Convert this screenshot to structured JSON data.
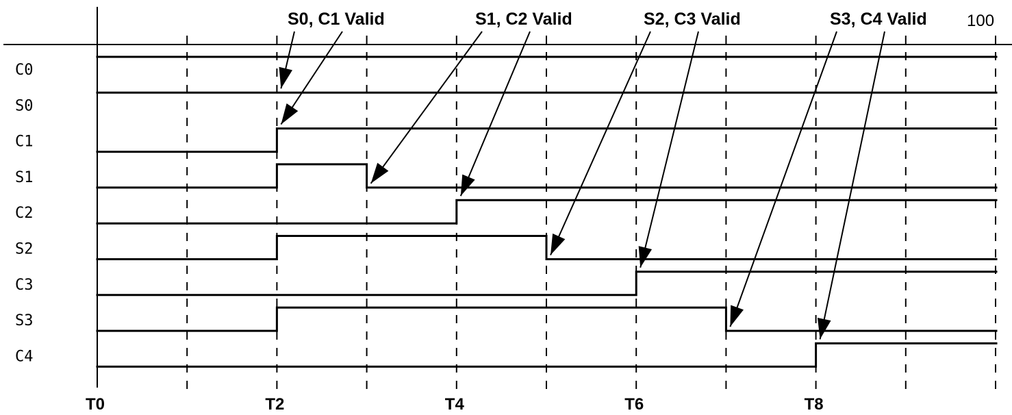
{
  "signals": [
    {
      "name": "C0",
      "transitions": [],
      "initial": 1
    },
    {
      "name": "S0",
      "transitions": [],
      "initial": 1
    },
    {
      "name": "C1",
      "transitions": [
        2
      ],
      "initial": 0
    },
    {
      "name": "S1",
      "transitions": [
        2,
        3
      ],
      "initial": 0
    },
    {
      "name": "C2",
      "transitions": [
        4
      ],
      "initial": 0
    },
    {
      "name": "S2",
      "transitions": [
        2,
        5
      ],
      "initial": 0
    },
    {
      "name": "C3",
      "transitions": [
        6
      ],
      "initial": 0
    },
    {
      "name": "S3",
      "transitions": [
        2,
        7
      ],
      "initial": 0
    },
    {
      "name": "C4",
      "transitions": [
        8
      ],
      "initial": 0
    }
  ],
  "annotations": [
    {
      "text": "S0, C1 Valid",
      "targets": [
        {
          "signal": "S0",
          "t": 2
        },
        {
          "signal": "C1",
          "t": 2
        }
      ]
    },
    {
      "text": "S1, C2 Valid",
      "targets": [
        {
          "signal": "S1",
          "t": 3
        },
        {
          "signal": "C2",
          "t": 4
        }
      ]
    },
    {
      "text": "S2, C3 Valid",
      "targets": [
        {
          "signal": "S2",
          "t": 5
        },
        {
          "signal": "C3",
          "t": 6
        }
      ]
    },
    {
      "text": "S3, C4 Valid",
      "targets": [
        {
          "signal": "S3",
          "t": 7
        },
        {
          "signal": "C4",
          "t": 8
        }
      ]
    }
  ],
  "time_labels": [
    "T0",
    "T2",
    "T4",
    "T6",
    "T8"
  ],
  "scale_end_label": "100"
}
